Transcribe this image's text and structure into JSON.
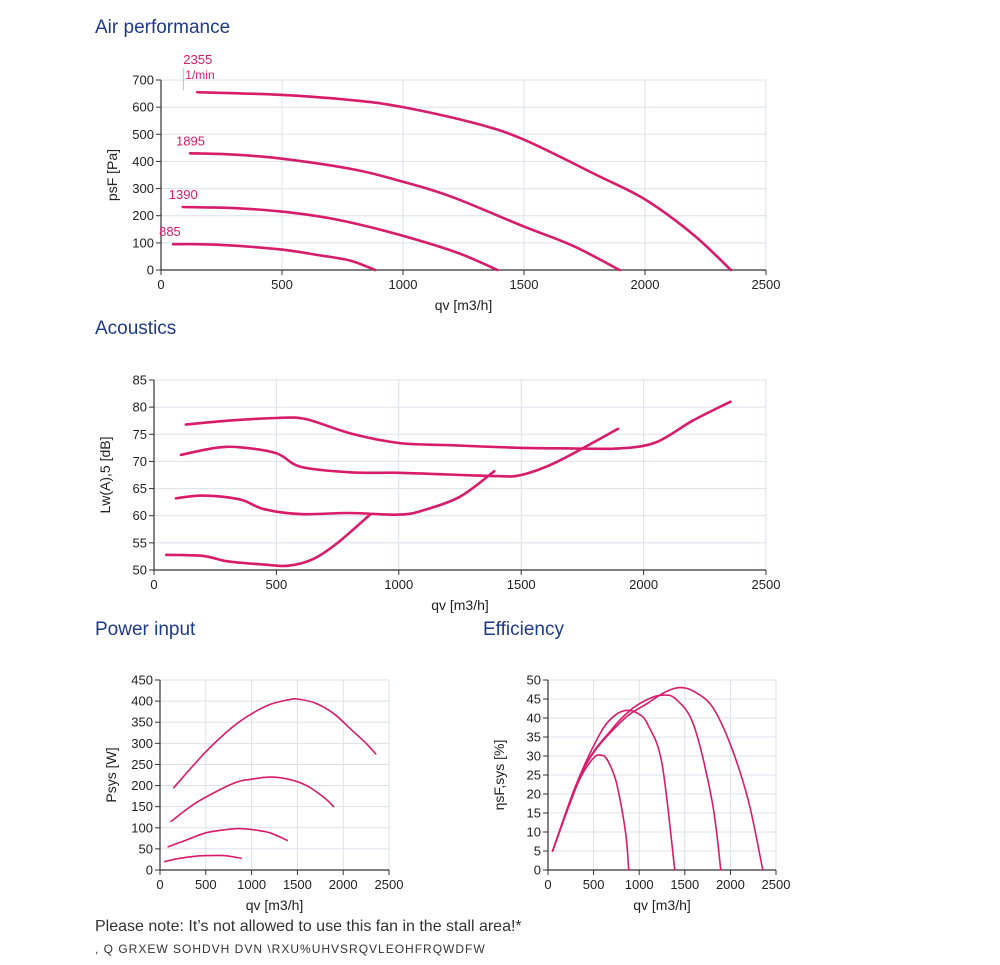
{
  "sections": {
    "air": "Air performance",
    "acoustics": "Acoustics",
    "power": "Power input",
    "efficiency": "Efficiency"
  },
  "notes": {
    "stall": "Please note: It’s not allowed to use this fan in the stall area!*",
    "footnote": ", Q    GRXEW   SOHDVH   DVN  \\RXU%UHVSRQVLEOHFRQWDFW"
  },
  "colors": {
    "curve": "#d81b6a",
    "grid": "#dbe1ea",
    "axis": "#333333",
    "title": "#1e3a8a"
  },
  "chart_data": [
    {
      "id": "air",
      "type": "line",
      "xlabel": "qv [m3/h]",
      "ylabel": "psF [Pa]",
      "xlim": [
        0,
        2500
      ],
      "ylim": [
        0,
        700
      ],
      "xticks": [
        0,
        500,
        1000,
        1500,
        2000,
        2500
      ],
      "yticks": [
        0,
        100,
        200,
        300,
        400,
        500,
        600,
        700
      ],
      "unit_label": "1/min",
      "series": [
        {
          "name": "2355",
          "x": [
            150,
            500,
            800,
            1000,
            1300,
            1500,
            1800,
            2000,
            2200,
            2355
          ],
          "y": [
            655,
            645,
            625,
            600,
            540,
            480,
            350,
            260,
            130,
            0
          ]
        },
        {
          "name": "1895",
          "x": [
            120,
            300,
            500,
            800,
            1000,
            1200,
            1500,
            1700,
            1895
          ],
          "y": [
            430,
            425,
            410,
            370,
            325,
            270,
            160,
            90,
            0
          ]
        },
        {
          "name": "1390",
          "x": [
            90,
            300,
            500,
            700,
            900,
            1100,
            1250,
            1390
          ],
          "y": [
            232,
            228,
            215,
            190,
            150,
            100,
            55,
            0
          ]
        },
        {
          "name": "885",
          "x": [
            50,
            150,
            300,
            500,
            650,
            780,
            885
          ],
          "y": [
            95,
            95,
            90,
            75,
            55,
            35,
            0
          ]
        }
      ]
    },
    {
      "id": "acoustics",
      "type": "line",
      "xlabel": "qv [m3/h]",
      "ylabel": "Lw(A),5 [dB]",
      "xlim": [
        0,
        2500
      ],
      "ylim": [
        50,
        85
      ],
      "xticks": [
        0,
        500,
        1000,
        1500,
        2000,
        2500
      ],
      "yticks": [
        50,
        55,
        60,
        65,
        70,
        75,
        80,
        85
      ],
      "series": [
        {
          "x": [
            130,
            300,
            500,
            620,
            800,
            1000,
            1200,
            1500,
            1700,
            1900,
            2050,
            2200,
            2355
          ],
          "y": [
            76.8,
            77.5,
            78.0,
            77.8,
            75.2,
            73.4,
            73.0,
            72.5,
            72.4,
            72.4,
            73.5,
            77.5,
            81.0
          ]
        },
        {
          "x": [
            110,
            250,
            350,
            500,
            600,
            800,
            1000,
            1200,
            1400,
            1500,
            1650,
            1895
          ],
          "y": [
            71.2,
            72.5,
            72.6,
            71.5,
            69.0,
            68.0,
            67.9,
            67.6,
            67.3,
            67.5,
            70.0,
            76.0
          ]
        },
        {
          "x": [
            90,
            200,
            350,
            450,
            600,
            800,
            1000,
            1100,
            1250,
            1390
          ],
          "y": [
            63.2,
            63.7,
            63.0,
            61.2,
            60.3,
            60.5,
            60.2,
            61.0,
            63.5,
            68.2
          ]
        },
        {
          "x": [
            50,
            200,
            300,
            450,
            550,
            650,
            750,
            885
          ],
          "y": [
            52.8,
            52.6,
            51.6,
            51.0,
            50.8,
            52.0,
            55.0,
            60.3
          ]
        }
      ]
    },
    {
      "id": "power",
      "type": "line",
      "xlabel": "qv [m3/h]",
      "ylabel": "Psys [W]",
      "xlim": [
        0,
        2500
      ],
      "ylim": [
        0,
        450
      ],
      "xticks": [
        0,
        500,
        1000,
        1500,
        2000,
        2500
      ],
      "yticks": [
        0,
        50,
        100,
        150,
        200,
        250,
        300,
        350,
        400,
        450
      ],
      "series": [
        {
          "x": [
            150,
            500,
            800,
            1000,
            1200,
            1400,
            1500,
            1700,
            1900,
            2100,
            2250,
            2355
          ],
          "y": [
            195,
            280,
            340,
            370,
            392,
            403,
            405,
            395,
            370,
            330,
            300,
            275
          ]
        },
        {
          "x": [
            120,
            400,
            800,
            1000,
            1200,
            1400,
            1600,
            1800,
            1895
          ],
          "y": [
            115,
            160,
            205,
            215,
            220,
            215,
            200,
            170,
            150
          ]
        },
        {
          "x": [
            90,
            300,
            500,
            700,
            850,
            1000,
            1200,
            1390
          ],
          "y": [
            55,
            72,
            88,
            95,
            98,
            96,
            88,
            70
          ]
        },
        {
          "x": [
            50,
            200,
            400,
            500,
            700,
            885
          ],
          "y": [
            20,
            27,
            33,
            34,
            34,
            28
          ]
        }
      ]
    },
    {
      "id": "efficiency",
      "type": "line",
      "xlabel": "qv [m3/h]",
      "ylabel": "ηsF,sys [%]",
      "xlim": [
        0,
        2500
      ],
      "ylim": [
        0,
        50
      ],
      "xticks": [
        0,
        500,
        1000,
        1500,
        2000,
        2500
      ],
      "yticks": [
        0,
        5,
        10,
        15,
        20,
        25,
        30,
        35,
        40,
        45,
        50
      ],
      "series": [
        {
          "x": [
            50,
            400,
            800,
            1100,
            1300,
            1450,
            1600,
            1800,
            2000,
            2200,
            2355
          ],
          "y": [
            5,
            27,
            39,
            44,
            47,
            48,
            47,
            43,
            33,
            18,
            0
          ]
        },
        {
          "x": [
            50,
            400,
            700,
            900,
            1100,
            1250,
            1400,
            1600,
            1800,
            1895
          ],
          "y": [
            5,
            27,
            37,
            42,
            45,
            46,
            45,
            38,
            18,
            0
          ]
        },
        {
          "x": [
            50,
            300,
            550,
            700,
            850,
            1000,
            1100,
            1250,
            1390
          ],
          "y": [
            5,
            22,
            35,
            40,
            42,
            41,
            38,
            28,
            0
          ]
        },
        {
          "x": [
            50,
            200,
            350,
            500,
            580,
            650,
            750,
            850,
            885
          ],
          "y": [
            5,
            15,
            24,
            29.5,
            30.2,
            29,
            23,
            10,
            0
          ]
        }
      ],
      "point_labels": []
    }
  ]
}
